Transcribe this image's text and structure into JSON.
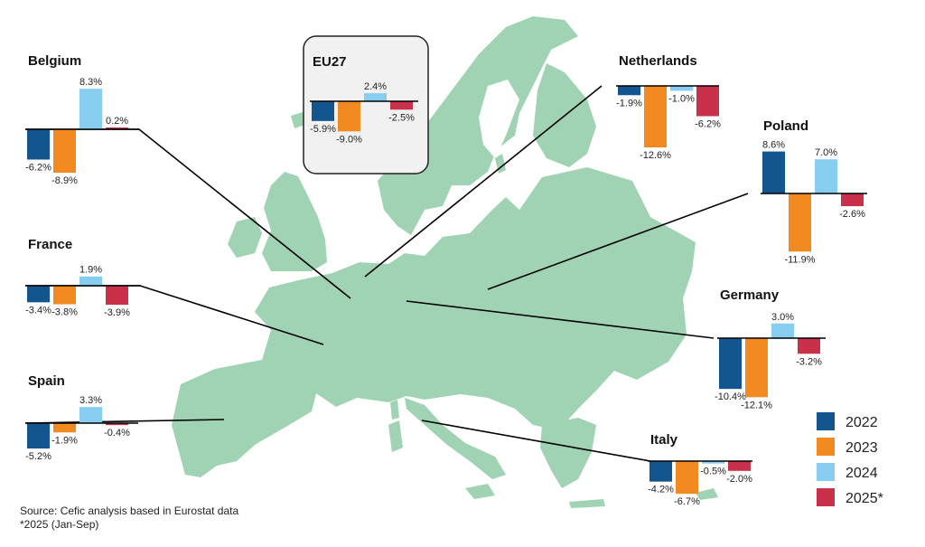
{
  "colors": {
    "map_fill": "#9fd3b3",
    "inset_bg": "#f1f1f1",
    "inset_border": "#222222",
    "leader_line": "#000000"
  },
  "legend": {
    "entries": [
      {
        "label": "2022",
        "color": "#13558e"
      },
      {
        "label": "2023",
        "color": "#f28a22"
      },
      {
        "label": "2024",
        "color": "#86cdf0"
      },
      {
        "label": "2025*",
        "color": "#c9304a"
      }
    ]
  },
  "source_note": {
    "line1": "Source: Cefic analysis based in Eurostat data",
    "line2": "*2025 (Jan-Sep)"
  },
  "chart_data": [
    {
      "type": "bar",
      "title": "EU27",
      "categories": [
        "2022",
        "2023",
        "2024",
        "2025*"
      ],
      "values": [
        -5.9,
        -9.0,
        2.4,
        -2.5
      ],
      "labels": [
        "-5.9%",
        "-9.0%",
        "2.4%",
        "-2.5%"
      ]
    },
    {
      "type": "bar",
      "title": "Belgium",
      "categories": [
        "2022",
        "2023",
        "2024",
        "2025*"
      ],
      "values": [
        -6.2,
        -8.9,
        8.3,
        0.2
      ],
      "labels": [
        "-6.2%",
        "-8.9%",
        "8.3%",
        "0.2%"
      ]
    },
    {
      "type": "bar",
      "title": "France",
      "categories": [
        "2022",
        "2023",
        "2024",
        "2025*"
      ],
      "values": [
        -3.4,
        -3.8,
        1.9,
        -3.9
      ],
      "labels": [
        "-3.4%",
        "-3.8%",
        "1.9%",
        "-3.9%"
      ]
    },
    {
      "type": "bar",
      "title": "Spain",
      "categories": [
        "2022",
        "2023",
        "2024",
        "2025*"
      ],
      "values": [
        -5.2,
        -1.9,
        3.3,
        -0.4
      ],
      "labels": [
        "-5.2%",
        "-1.9%",
        "3.3%",
        "-0.4%"
      ]
    },
    {
      "type": "bar",
      "title": "Netherlands",
      "categories": [
        "2022",
        "2023",
        "2024",
        "2025*"
      ],
      "values": [
        -1.9,
        -12.6,
        -1.0,
        -6.2
      ],
      "labels": [
        "-1.9%",
        "-12.6%",
        "-1.0%",
        "-6.2%"
      ]
    },
    {
      "type": "bar",
      "title": "Poland",
      "categories": [
        "2022",
        "2023",
        "2024",
        "2025*"
      ],
      "values": [
        8.6,
        -11.9,
        7.0,
        -2.6
      ],
      "labels": [
        "8.6%",
        "-11.9%",
        "7.0%",
        "-2.6%"
      ]
    },
    {
      "type": "bar",
      "title": "Germany",
      "categories": [
        "2022",
        "2023",
        "2024",
        "2025*"
      ],
      "values": [
        -10.4,
        -12.1,
        3.0,
        -3.2
      ],
      "labels": [
        "-10.4%",
        "-12.1%",
        "3.0%",
        "-3.2%"
      ]
    },
    {
      "type": "bar",
      "title": "Italy",
      "categories": [
        "2022",
        "2023",
        "2024",
        "2025*"
      ],
      "values": [
        -4.2,
        -6.7,
        -0.5,
        -2.0
      ],
      "labels": [
        "-4.2%",
        "-6.7%",
        "-0.5%",
        "-2.0%"
      ]
    }
  ]
}
